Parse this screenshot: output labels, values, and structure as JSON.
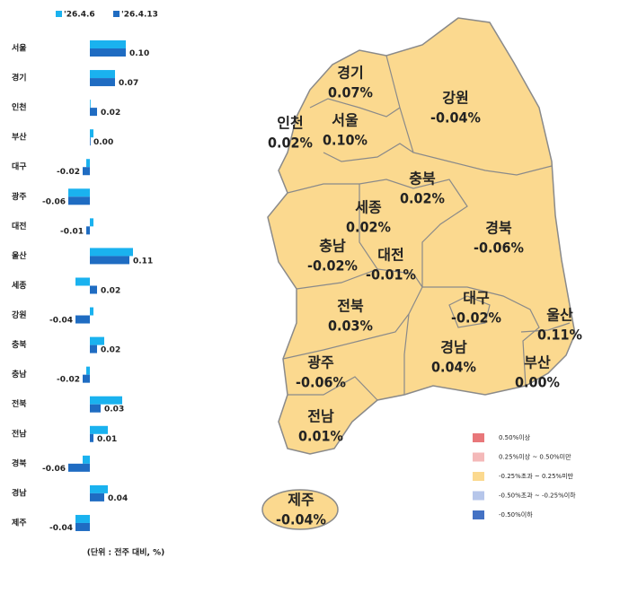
{
  "chart_data": [
    {
      "type": "hbar",
      "categories": [
        "서울",
        "경기",
        "인천",
        "부산",
        "대구",
        "광주",
        "대전",
        "울산",
        "세종",
        "강원",
        "충북",
        "충남",
        "전북",
        "전남",
        "경북",
        "경남",
        "제주"
      ],
      "series": [
        {
          "name": "'26.4.6",
          "color": "#1ab2ef",
          "values": [
            0.1,
            0.07,
            0.0,
            0.01,
            -0.01,
            -0.06,
            0.01,
            0.12,
            -0.04,
            0.01,
            0.04,
            -0.01,
            0.09,
            0.05,
            -0.02,
            0.05,
            -0.04
          ]
        },
        {
          "name": "'26.4.13",
          "color": "#1f6cc2",
          "values": [
            0.1,
            0.07,
            0.02,
            0.0,
            -0.02,
            -0.06,
            -0.01,
            0.11,
            0.02,
            -0.04,
            0.02,
            -0.02,
            0.03,
            0.01,
            -0.06,
            0.04,
            -0.04
          ],
          "value_labels": [
            "0.10",
            "0.07",
            "0.02",
            "0.00",
            "-0.02",
            "-0.06",
            "-0.01",
            "0.11",
            "0.02",
            "-0.04",
            "0.02",
            "-0.02",
            "0.03",
            "0.01",
            "-0.06",
            "0.04",
            "-0.04"
          ]
        }
      ],
      "xlim": [
        -0.25,
        0.15
      ],
      "note": "(단위 : 전주 대비, %)"
    },
    {
      "type": "map",
      "regions": [
        {
          "name": "서울",
          "value": 0.1,
          "value_label": "0.10%"
        },
        {
          "name": "경기",
          "value": 0.07,
          "value_label": "0.07%"
        },
        {
          "name": "인천",
          "value": 0.02,
          "value_label": "0.02%"
        },
        {
          "name": "부산",
          "value": 0.0,
          "value_label": "0.00%"
        },
        {
          "name": "대구",
          "value": -0.02,
          "value_label": "-0.02%"
        },
        {
          "name": "광주",
          "value": -0.06,
          "value_label": "-0.06%"
        },
        {
          "name": "대전",
          "value": -0.01,
          "value_label": "-0.01%"
        },
        {
          "name": "울산",
          "value": 0.11,
          "value_label": "0.11%"
        },
        {
          "name": "세종",
          "value": 0.02,
          "value_label": "0.02%"
        },
        {
          "name": "강원",
          "value": -0.04,
          "value_label": "-0.04%"
        },
        {
          "name": "충북",
          "value": 0.02,
          "value_label": "0.02%"
        },
        {
          "name": "충남",
          "value": -0.02,
          "value_label": "-0.02%"
        },
        {
          "name": "전북",
          "value": 0.03,
          "value_label": "0.03%"
        },
        {
          "name": "전남",
          "value": 0.01,
          "value_label": "0.01%"
        },
        {
          "name": "경북",
          "value": -0.06,
          "value_label": "-0.06%"
        },
        {
          "name": "경남",
          "value": 0.04,
          "value_label": "0.04%"
        },
        {
          "name": "제주",
          "value": -0.04,
          "value_label": "-0.04%"
        }
      ],
      "legend": [
        {
          "label": "0.50%이상",
          "color": "#e8777a"
        },
        {
          "label": "0.25%이상 ~ 0.50%미만",
          "color": "#f4b9b9"
        },
        {
          "label": "-0.25%초과 ~ 0.25%미만",
          "color": "#fbd98f"
        },
        {
          "label": "-0.50%초과 ~ -0.25%이하",
          "color": "#b6c6ea"
        },
        {
          "label": "-0.50%이하",
          "color": "#4472c4"
        }
      ]
    }
  ]
}
